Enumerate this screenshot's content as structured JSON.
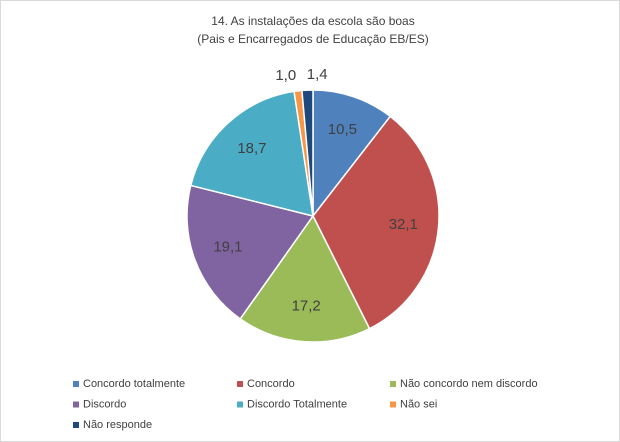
{
  "chart_data": {
    "type": "pie",
    "title": "14. As instalações da escola são boas",
    "subtitle": "(Pais e Encarregados de Educação EB/ES)",
    "categories": [
      "Concordo totalmente",
      "Concordo",
      "Não concordo nem discordo",
      "Discordo",
      "Discordo Totalmente",
      "Não sei",
      "Não responde"
    ],
    "values": [
      10.5,
      32.1,
      17.2,
      19.1,
      18.7,
      1.0,
      1.4
    ],
    "value_labels": [
      "10,5",
      "32,1",
      "17,2",
      "19,1",
      "18,7",
      "1,0",
      "1,4"
    ],
    "colors": [
      "#4f81bd",
      "#c0504d",
      "#9bbb59",
      "#8064a2",
      "#4bacc6",
      "#f79646",
      "#1f497d"
    ],
    "legend": "bottom"
  }
}
